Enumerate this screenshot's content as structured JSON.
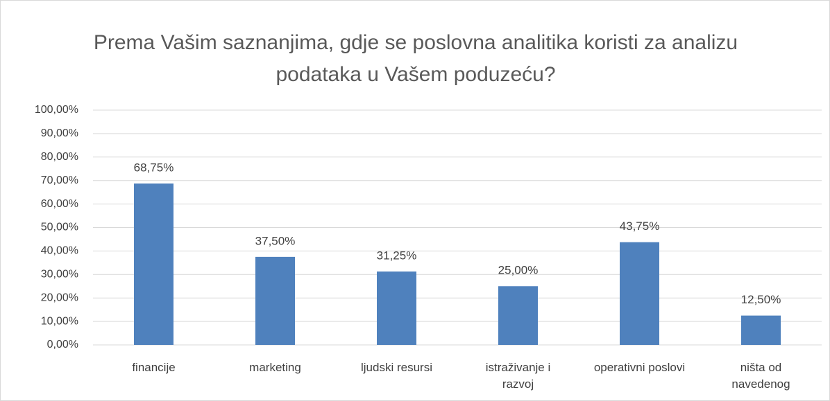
{
  "chart_data": {
    "type": "bar",
    "title": "Prema Vašim saznanjima, gdje se poslovna analitika koristi za analizu podataka u Vašem poduzeću?",
    "categories": [
      "financije",
      "marketing",
      "ljudski resursi",
      "istraživanje i\nrazvoj",
      "operativni poslovi",
      "ništa od\nnavedenog"
    ],
    "values": [
      68.75,
      37.5,
      31.25,
      25,
      43.75,
      12.5
    ],
    "value_labels": [
      "68,75%",
      "37,50%",
      "31,25%",
      "25,00%",
      "43,75%",
      "12,50%"
    ],
    "color": "#4f81bd",
    "ylim": [
      0,
      100
    ],
    "yticks": [
      {
        "value": 0,
        "label": "0,00%"
      },
      {
        "value": 10,
        "label": "10,00%"
      },
      {
        "value": 20,
        "label": "20,00%"
      },
      {
        "value": 30,
        "label": "30,00%"
      },
      {
        "value": 40,
        "label": "40,00%"
      },
      {
        "value": 50,
        "label": "50,00%"
      },
      {
        "value": 60,
        "label": "60,00%"
      },
      {
        "value": 70,
        "label": "70,00%"
      },
      {
        "value": 80,
        "label": "80,00%"
      },
      {
        "value": 90,
        "label": "90,00%"
      },
      {
        "value": 100,
        "label": "100,00%"
      }
    ],
    "grid": true
  }
}
